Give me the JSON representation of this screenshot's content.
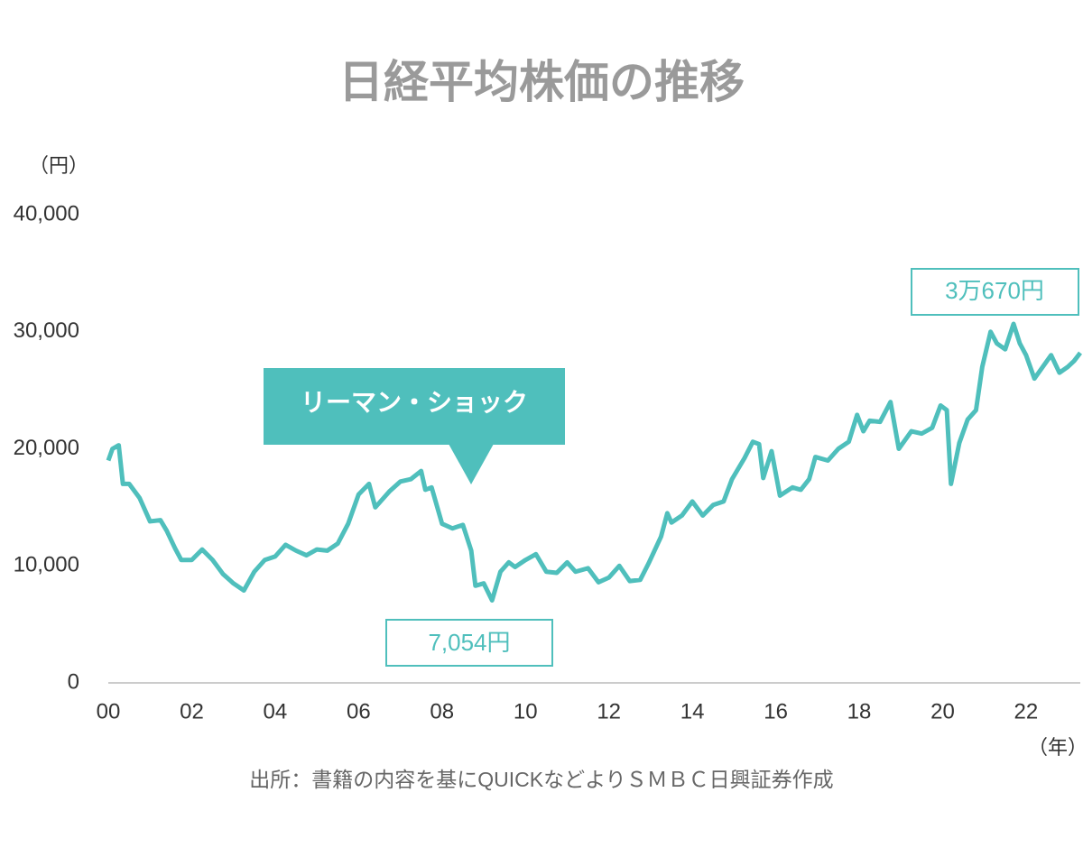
{
  "chart_data": {
    "type": "line",
    "title": "日経平均株価の推移",
    "y_label": "（円）",
    "x_label": "（年）",
    "source": "出所：書籍の内容を基にQUICKなどよりＳＭＢＣ日興証券作成",
    "annotations": [
      "リーマン・ショック",
      "7,054円",
      "3万670円"
    ],
    "color": "#4fbfbc",
    "x": [
      2000.0,
      2000.1,
      2000.25,
      2000.35,
      2000.5,
      2000.75,
      2001.0,
      2001.25,
      2001.4,
      2001.6,
      2001.75,
      2002.0,
      2002.25,
      2002.5,
      2002.75,
      2003.0,
      2003.25,
      2003.5,
      2003.75,
      2004.0,
      2004.25,
      2004.5,
      2004.75,
      2005.0,
      2005.25,
      2005.5,
      2005.75,
      2006.0,
      2006.25,
      2006.4,
      2006.6,
      2006.75,
      2007.0,
      2007.25,
      2007.5,
      2007.6,
      2007.75,
      2008.0,
      2008.25,
      2008.5,
      2008.7,
      2008.8,
      2009.0,
      2009.2,
      2009.4,
      2009.6,
      2009.75,
      2010.0,
      2010.25,
      2010.5,
      2010.75,
      2011.0,
      2011.2,
      2011.5,
      2011.75,
      2012.0,
      2012.25,
      2012.5,
      2012.75,
      2012.95,
      2013.25,
      2013.4,
      2013.5,
      2013.75,
      2014.0,
      2014.25,
      2014.5,
      2014.75,
      2014.95,
      2015.25,
      2015.45,
      2015.6,
      2015.7,
      2015.9,
      2016.1,
      2016.4,
      2016.6,
      2016.8,
      2016.95,
      2017.25,
      2017.5,
      2017.75,
      2017.95,
      2018.1,
      2018.25,
      2018.5,
      2018.75,
      2018.95,
      2019.25,
      2019.5,
      2019.75,
      2019.95,
      2020.1,
      2020.2,
      2020.4,
      2020.6,
      2020.8,
      2020.95,
      2021.15,
      2021.3,
      2021.5,
      2021.7,
      2021.85,
      2022.0,
      2022.2,
      2022.4,
      2022.6,
      2022.8,
      2023.0,
      2023.15,
      2023.3
    ],
    "values": [
      19000,
      20000,
      20300,
      17000,
      17000,
      15800,
      13800,
      13900,
      13000,
      11500,
      10500,
      10500,
      11400,
      10500,
      9300,
      8500,
      7900,
      9500,
      10500,
      10800,
      11800,
      11300,
      10900,
      11400,
      11300,
      11900,
      13600,
      16100,
      17000,
      15000,
      15800,
      16400,
      17200,
      17400,
      18100,
      16500,
      16700,
      13600,
      13200,
      13500,
      11300,
      8300,
      8500,
      7054,
      9500,
      10300,
      9900,
      10500,
      11000,
      9500,
      9400,
      10300,
      9500,
      9800,
      8600,
      9000,
      10000,
      8700,
      8800,
      10200,
      12500,
      14500,
      13700,
      14300,
      15500,
      14300,
      15200,
      15500,
      17400,
      19200,
      20600,
      20400,
      17500,
      19800,
      16000,
      16700,
      16500,
      17400,
      19300,
      19000,
      20000,
      20600,
      22900,
      21500,
      22400,
      22300,
      24000,
      20000,
      21500,
      21300,
      21800,
      23700,
      23300,
      17000,
      20500,
      22500,
      23300,
      27000,
      30000,
      29000,
      28500,
      30670,
      29000,
      28000,
      26000,
      27000,
      28000,
      26500,
      27000,
      27500,
      28200
    ],
    "xlim": [
      2000,
      2023.3
    ],
    "ylim": [
      0,
      40000
    ],
    "xticks": [
      {
        "value": 2000,
        "label": "00"
      },
      {
        "value": 2002,
        "label": "02"
      },
      {
        "value": 2004,
        "label": "04"
      },
      {
        "value": 2006,
        "label": "06"
      },
      {
        "value": 2008,
        "label": "08"
      },
      {
        "value": 2010,
        "label": "10"
      },
      {
        "value": 2012,
        "label": "12"
      },
      {
        "value": 2014,
        "label": "14"
      },
      {
        "value": 2016,
        "label": "16"
      },
      {
        "value": 2018,
        "label": "18"
      },
      {
        "value": 2020,
        "label": "20"
      },
      {
        "value": 2022,
        "label": "22"
      }
    ],
    "yticks": [
      0,
      {
        "value": 10000,
        "label": "10,000"
      },
      {
        "value": 20000,
        "label": "20,000"
      },
      {
        "value": 30000,
        "label": "30,000"
      },
      {
        "value": 40000,
        "label": "40,000"
      }
    ]
  }
}
